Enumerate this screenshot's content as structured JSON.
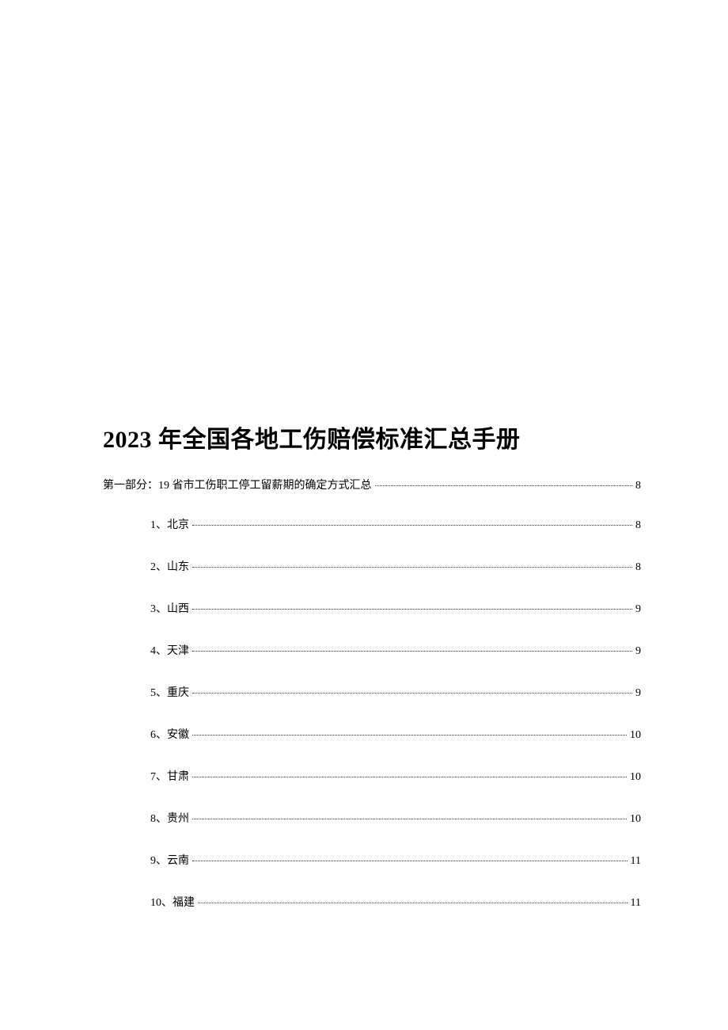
{
  "document": {
    "title": "2023 年全国各地工伤赔偿标准汇总手册",
    "section": {
      "label": "第一部分：19 省市工伤职工停工留薪期的确定方式汇总",
      "page": "8"
    },
    "toc_entries": [
      {
        "label": "1、北京",
        "page": "8"
      },
      {
        "label": "2、山东",
        "page": "8"
      },
      {
        "label": "3、山西",
        "page": "9"
      },
      {
        "label": "4、天津",
        "page": "9"
      },
      {
        "label": "5、重庆",
        "page": "9"
      },
      {
        "label": "6、安徽",
        "page": "10"
      },
      {
        "label": "7、甘肃",
        "page": "10"
      },
      {
        "label": "8、贵州",
        "page": "10"
      },
      {
        "label": "9、云南",
        "page": "11"
      },
      {
        "label": "10、福建",
        "page": "11"
      }
    ],
    "colors": {
      "background": "#ffffff",
      "text": "#000000",
      "dots": "#333333"
    },
    "typography": {
      "title_fontsize": 30,
      "body_fontsize": 14,
      "title_weight": "bold"
    }
  }
}
